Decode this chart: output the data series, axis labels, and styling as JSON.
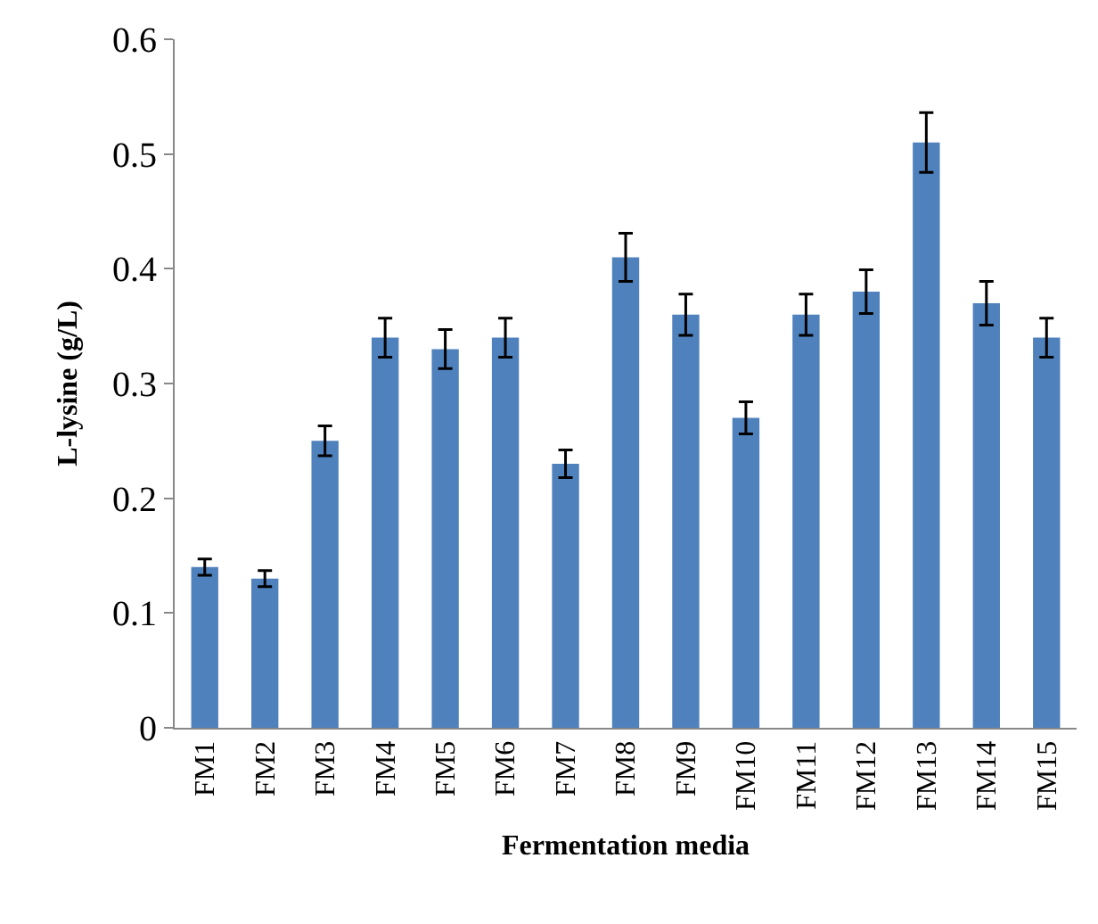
{
  "chart_data": {
    "type": "bar",
    "xlabel": "Fermentation media",
    "ylabel": "L-lysine (g/L)",
    "categories": [
      "FM1",
      "FM2",
      "FM3",
      "FM4",
      "FM5",
      "FM6",
      "FM7",
      "FM8",
      "FM9",
      "FM10",
      "FM11",
      "FM12",
      "FM13",
      "FM14",
      "FM15"
    ],
    "values": [
      0.14,
      0.13,
      0.25,
      0.34,
      0.33,
      0.34,
      0.23,
      0.41,
      0.36,
      0.27,
      0.36,
      0.38,
      0.51,
      0.37,
      0.34
    ],
    "errors": [
      0.007,
      0.007,
      0.013,
      0.017,
      0.017,
      0.017,
      0.012,
      0.021,
      0.018,
      0.014,
      0.018,
      0.019,
      0.026,
      0.019,
      0.017
    ],
    "color": "#4f81bd",
    "ylim": [
      0,
      0.6
    ],
    "yticks": [
      {
        "value": 0,
        "label": "0"
      },
      {
        "value": 0.1,
        "label": "0.1"
      },
      {
        "value": 0.2,
        "label": "0.2"
      },
      {
        "value": 0.3,
        "label": "0.3"
      },
      {
        "value": 0.4,
        "label": "0.4"
      },
      {
        "value": 0.5,
        "label": "0.5"
      },
      {
        "value": 0.6,
        "label": "0.6"
      }
    ]
  }
}
